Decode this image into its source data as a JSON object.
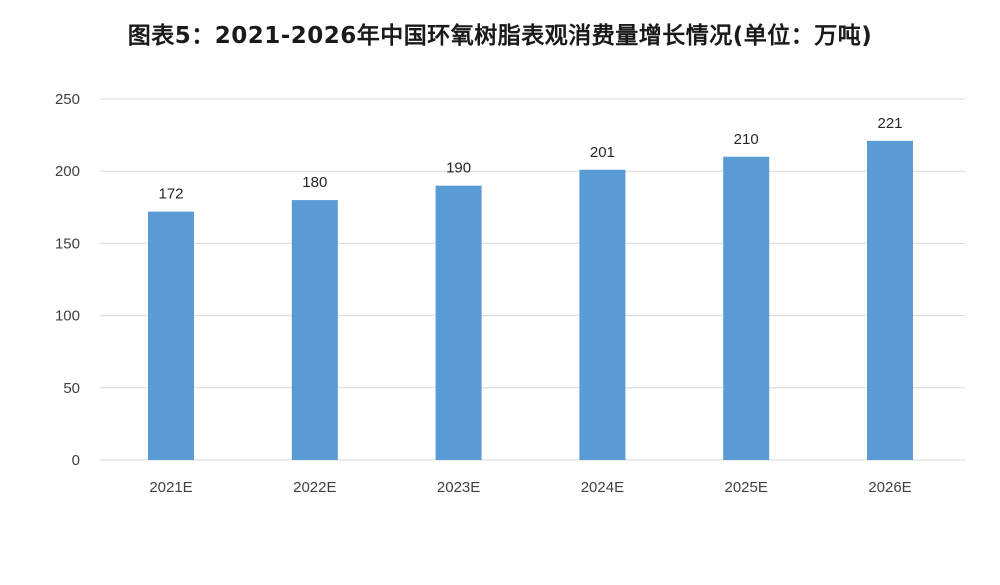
{
  "chart_data": {
    "type": "bar",
    "title": "图表5：2021-2026年中国环氧树脂表观消费量增长情况(单位：万吨)",
    "categories": [
      "2021E",
      "2022E",
      "2023E",
      "2024E",
      "2025E",
      "2026E"
    ],
    "values": [
      172,
      180,
      190,
      201,
      210,
      221
    ],
    "data_labels": [
      "172",
      "180",
      "190",
      "201",
      "210",
      "221"
    ],
    "ylim": [
      0,
      250
    ],
    "y_ticks": [
      0,
      50,
      100,
      150,
      200,
      250
    ],
    "xlabel": "",
    "ylabel": "",
    "grid": true,
    "legend": "none",
    "bar_color": "#5b9bd5",
    "grid_color": "#d9d9d9"
  }
}
